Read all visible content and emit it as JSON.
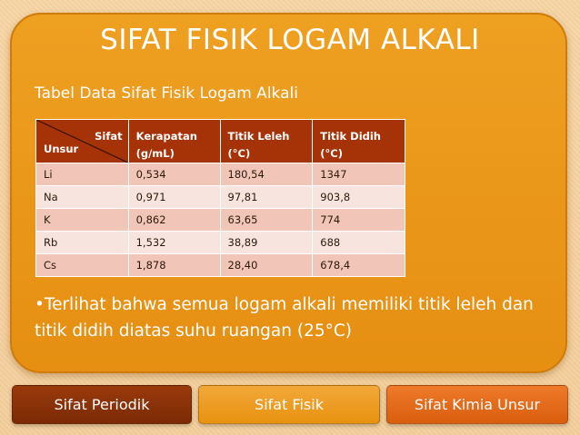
{
  "slide": {
    "title": "SIFAT FISIK LOGAM ALKALI",
    "subtitle": "Tabel Data Sifat Fisik Logam Alkali",
    "bullet": "•Terlihat bahwa semua logam alkali memiliki titik leleh dan titik didih diatas suhu ruangan (25°C)"
  },
  "table": {
    "corner_top": "Sifat",
    "corner_bottom": "Unsur",
    "headers": [
      [
        "Kerapatan",
        "(g/mL)"
      ],
      [
        "Titik Leleh",
        "(°C)"
      ],
      [
        "Titik Didih",
        "(°C)"
      ]
    ],
    "rows": [
      [
        "Li",
        "0,534",
        "180,54",
        "1347"
      ],
      [
        "Na",
        "0,971",
        "97,81",
        "903,8"
      ],
      [
        "K",
        "0,862",
        "63,65",
        "774"
      ],
      [
        "Rb",
        "1,532",
        "38,89",
        "688"
      ],
      [
        "Cs",
        "1,878",
        "28,40",
        "678,4"
      ]
    ]
  },
  "nav": {
    "tabs": [
      "Sifat Periodik",
      "Sifat Fisik",
      "Sifat Kimia Unsur"
    ]
  },
  "colors": {
    "panel": "#e8960f",
    "header": "#a53307",
    "row_odd": "#f2c5b9",
    "row_even": "#f8e4de"
  }
}
